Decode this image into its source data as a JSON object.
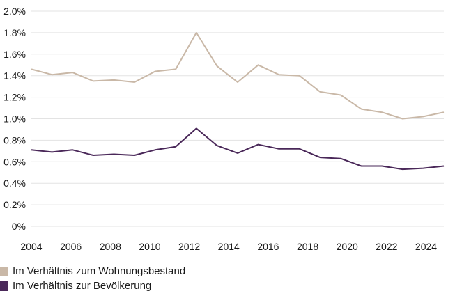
{
  "chart_data": {
    "type": "line",
    "x": [
      2004,
      2005,
      2006,
      2007,
      2008,
      2009,
      2010,
      2011,
      2012,
      2013,
      2014,
      2015,
      2016,
      2017,
      2018,
      2019,
      2020,
      2021,
      2022,
      2023,
      2024
    ],
    "series": [
      {
        "name": "Im Verhältnis zum Wohnungsbestand",
        "color": "#c9b8a7",
        "values": [
          1.46,
          1.41,
          1.43,
          1.35,
          1.36,
          1.34,
          1.44,
          1.46,
          1.8,
          1.49,
          1.34,
          1.5,
          1.41,
          1.4,
          1.25,
          1.22,
          1.09,
          1.06,
          1.0,
          1.02,
          1.06
        ]
      },
      {
        "name": "Im Verhältnis zur Bevölkerung",
        "color": "#4a2859",
        "values": [
          0.71,
          0.69,
          0.71,
          0.66,
          0.67,
          0.66,
          0.71,
          0.74,
          0.91,
          0.75,
          0.68,
          0.76,
          0.72,
          0.72,
          0.64,
          0.63,
          0.56,
          0.56,
          0.53,
          0.54,
          0.56
        ]
      }
    ],
    "x_ticks": [
      "2004",
      "2006",
      "2008",
      "2010",
      "2012",
      "2014",
      "2016",
      "2018",
      "2020",
      "2022",
      "2024"
    ],
    "y_ticks": [
      "0%",
      "0.2%",
      "0.4%",
      "0.6%",
      "0.8%",
      "1.0%",
      "1.2%",
      "1.4%",
      "1.6%",
      "1.8%",
      "2.0%"
    ],
    "ylim": [
      0,
      2.0
    ],
    "xlim": [
      2004,
      2024.9
    ],
    "grid": "horizontal",
    "legend_position": "bottom-left"
  }
}
